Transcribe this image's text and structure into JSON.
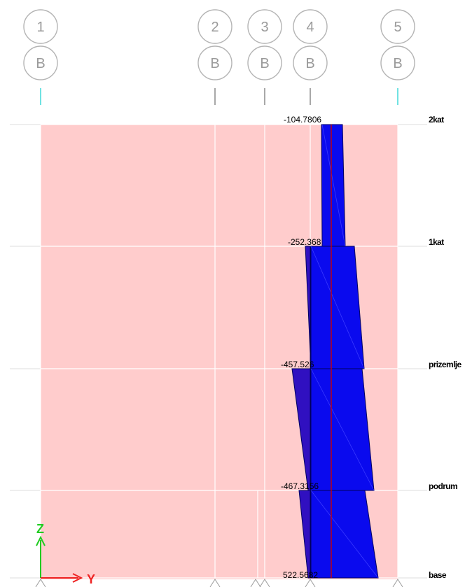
{
  "view": {
    "colors": {
      "panel": "#ffcccc",
      "grid": "#ffffff",
      "bubble": "#b4b4b4",
      "bubble_text": "#9a9a9a",
      "diagram_fill": "#0a0aee",
      "diagram_fill_dark": "#3010c0",
      "diagram_edge": "#000060",
      "center_line": "#cc0000",
      "grid_marker": "#40d8d8",
      "axis_z": "#22cc22",
      "axis_y": "#ee2222"
    }
  },
  "grid_lines": [
    {
      "label": "1",
      "sub": "B"
    },
    {
      "label": "2",
      "sub": "B"
    },
    {
      "label": "3",
      "sub": "B"
    },
    {
      "label": "4",
      "sub": "B"
    },
    {
      "label": "5",
      "sub": "B"
    }
  ],
  "stories": [
    "2kat",
    "1kat",
    "prizemlje",
    "podrum",
    "base"
  ],
  "values": {
    "top": "-104.7806",
    "kat1_overlap": "-252.368",
    "prizemlje_overlap": "-457.526",
    "podrum_overlap": "-467.3156",
    "base": "522.5682"
  },
  "axes": {
    "z": "Z",
    "y": "Y"
  }
}
